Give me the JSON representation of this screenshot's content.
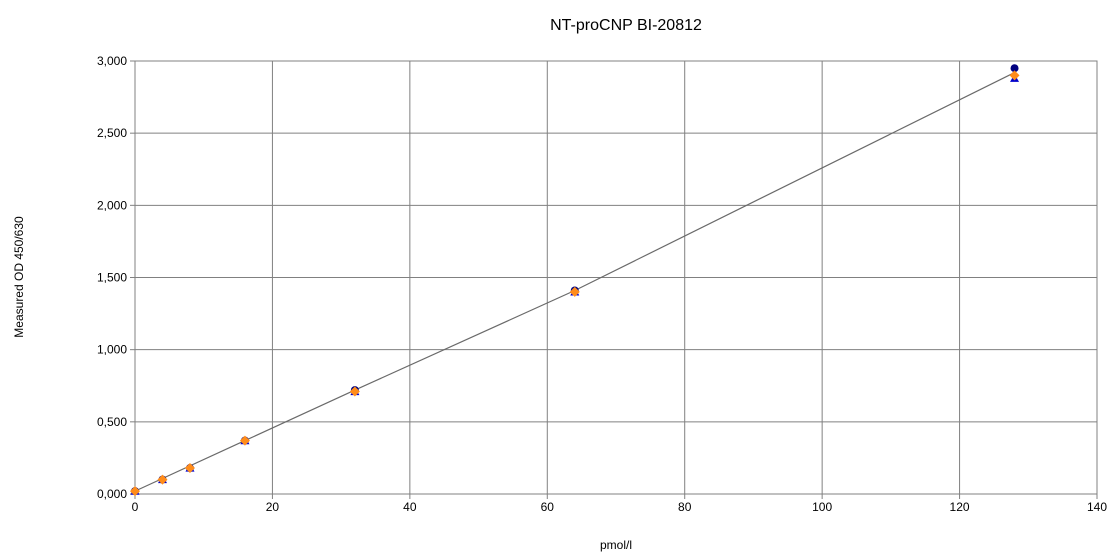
{
  "chart_data": {
    "type": "scatter",
    "title": "NT-proCNP BI-20812",
    "xlabel": "pmol/l",
    "ylabel": "Measured OD 450/630",
    "xlim": [
      0,
      140
    ],
    "ylim": [
      0,
      3
    ],
    "x_ticks": [
      0,
      20,
      40,
      60,
      80,
      100,
      120,
      140
    ],
    "x_tick_labels": [
      "0",
      "20",
      "40",
      "60",
      "80",
      "100",
      "120",
      "140"
    ],
    "y_ticks": [
      0,
      0.5,
      1.0,
      1.5,
      2.0,
      2.5,
      3.0
    ],
    "y_tick_labels": [
      "0,000",
      "0,500",
      "1,000",
      "1,500",
      "2,000",
      "2,500",
      "3,000"
    ],
    "grid": true,
    "series": [
      {
        "marker": "circle",
        "color": "#000080",
        "x": [
          0,
          4,
          8,
          16,
          32,
          64,
          128
        ],
        "y": [
          0.02,
          0.1,
          0.18,
          0.37,
          0.72,
          1.41,
          2.95
        ]
      },
      {
        "marker": "triangle",
        "color": "#0000cc",
        "x": [
          0,
          4,
          8,
          16,
          32,
          64,
          128
        ],
        "y": [
          0.02,
          0.1,
          0.18,
          0.37,
          0.71,
          1.4,
          2.88
        ]
      },
      {
        "marker": "diamond",
        "color": "#ff8c1a",
        "x": [
          0,
          4,
          8,
          16,
          32,
          64,
          128
        ],
        "y": [
          0.02,
          0.1,
          0.18,
          0.37,
          0.71,
          1.4,
          2.9
        ]
      }
    ],
    "fit_line": {
      "color": "#6a6a6a",
      "x": [
        0,
        16,
        32,
        64,
        128
      ],
      "y": [
        0.02,
        0.37,
        0.72,
        1.41,
        2.92
      ]
    }
  }
}
